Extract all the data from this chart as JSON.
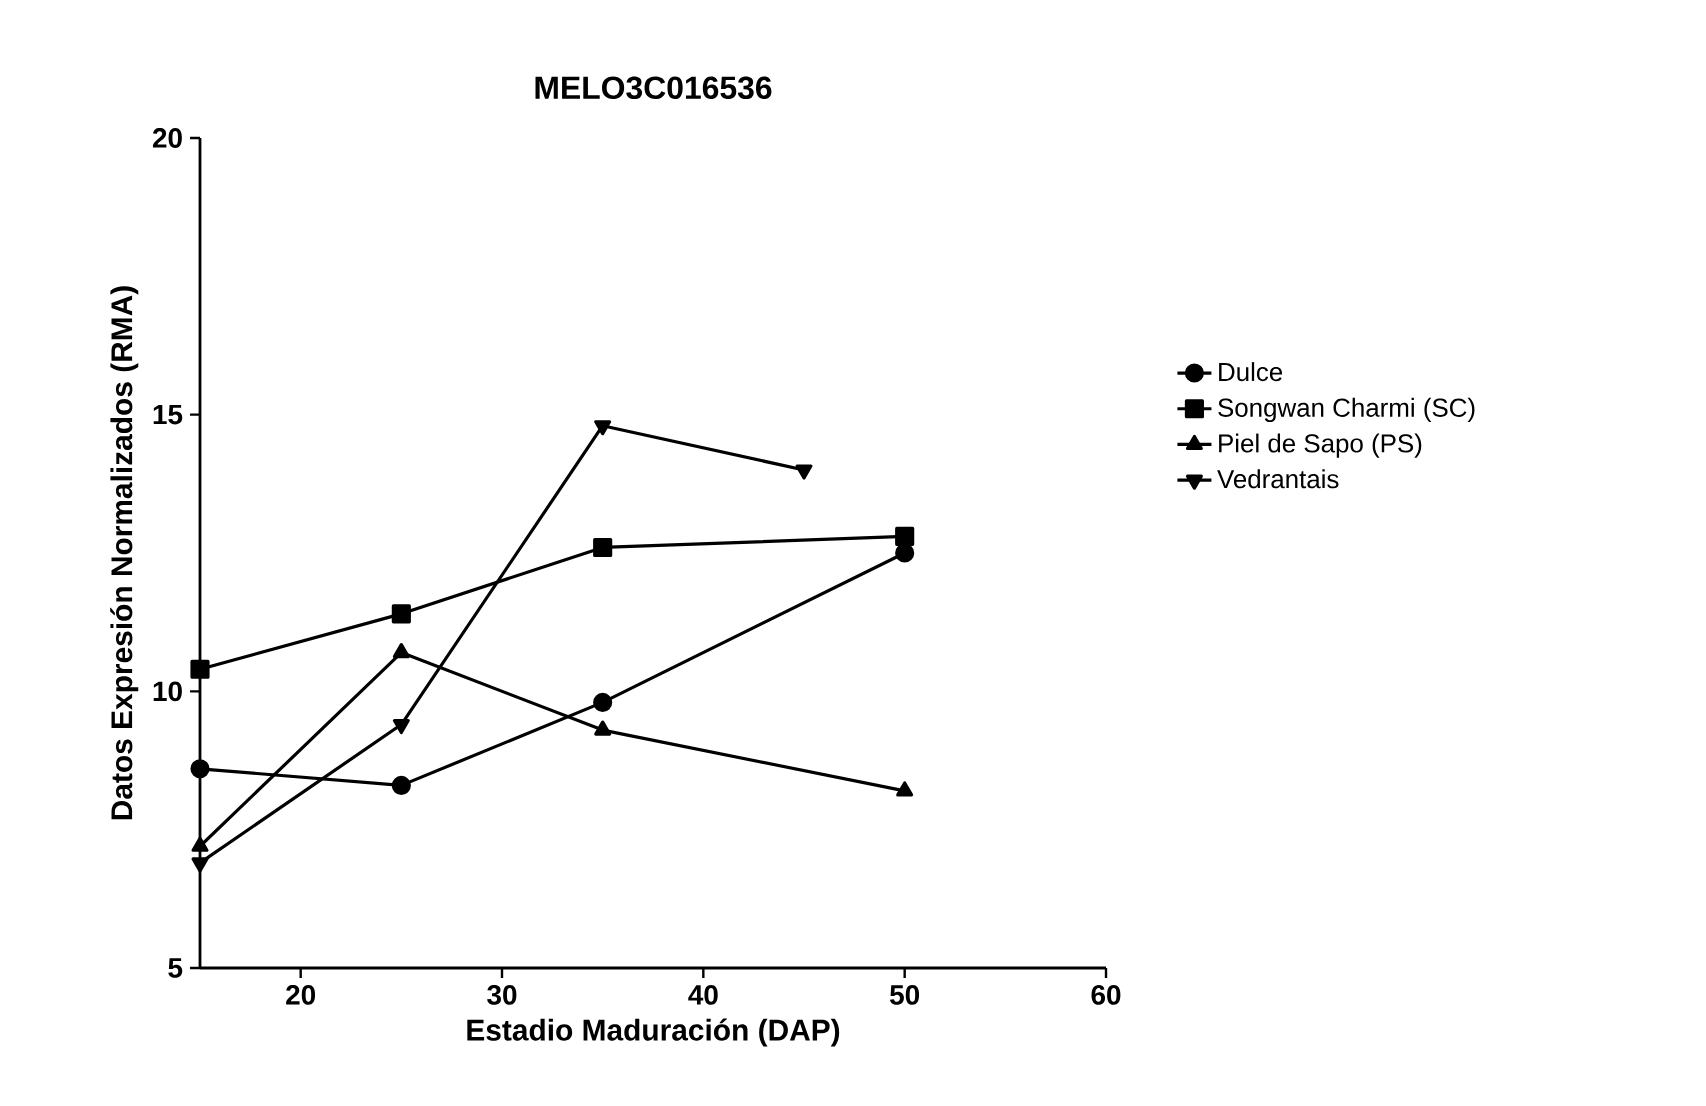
{
  "chart_data": {
    "type": "line",
    "title": "MELO3C016536",
    "xlabel": "Estadio Maduración (DAP)",
    "ylabel": "Datos Expresión Normalizados (RMA)",
    "xlim": [
      15,
      60
    ],
    "xticks": [
      20,
      30,
      40,
      50,
      60
    ],
    "ylim": [
      5,
      20
    ],
    "yticks": [
      5,
      10,
      15,
      20
    ],
    "grid": false,
    "legend": "right",
    "series": [
      {
        "name": "Dulce",
        "color": "#000000",
        "marker": "circle",
        "x": [
          15,
          25,
          35,
          50
        ],
        "values": [
          8.6,
          8.3,
          9.8,
          12.5
        ]
      },
      {
        "name": "Songwan Charmi (SC)",
        "color": "#000000",
        "marker": "square",
        "x": [
          15,
          25,
          35,
          50
        ],
        "values": [
          10.4,
          11.4,
          12.6,
          12.8
        ]
      },
      {
        "name": "Piel de Sapo (PS)",
        "color": "#000000",
        "marker": "triangle",
        "x": [
          15,
          25,
          35,
          50
        ],
        "values": [
          7.2,
          10.7,
          9.3,
          8.2
        ]
      },
      {
        "name": "Vedrantais",
        "color": "#000000",
        "marker": "triangle-down",
        "x": [
          15,
          25,
          35,
          45
        ],
        "values": [
          6.9,
          9.4,
          14.8,
          14.0
        ]
      }
    ]
  }
}
